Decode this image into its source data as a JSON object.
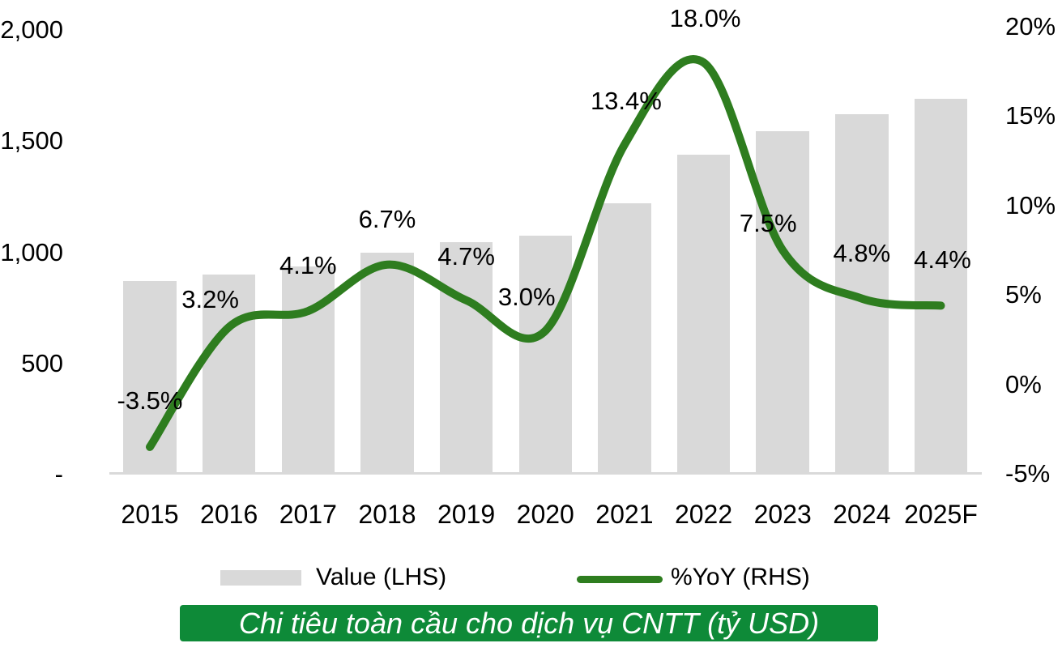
{
  "chart_data": {
    "type": "bar+line",
    "title": "Chi tiêu toàn cầu cho dịch vụ CNTT (tỷ USD)",
    "categories": [
      "2015",
      "2016",
      "2017",
      "2018",
      "2019",
      "2020",
      "2021",
      "2022",
      "2023",
      "2024",
      "2025F"
    ],
    "series": [
      {
        "name": "Value (LHS)",
        "type": "bar",
        "axis": "left",
        "color": "#d9d9d9",
        "values": [
          870,
          898,
          935,
          997,
          1044,
          1075,
          1219,
          1438,
          1546,
          1620,
          1691
        ]
      },
      {
        "name": "%YoY (RHS)",
        "type": "line",
        "axis": "right",
        "color": "#2e7d1f",
        "values": [
          -3.5,
          3.2,
          4.1,
          6.7,
          4.7,
          3.0,
          13.4,
          18.0,
          7.5,
          4.8,
          4.4
        ],
        "labels": [
          "-3.5%",
          "3.2%",
          "4.1%",
          "6.7%",
          "4.7%",
          "3.0%",
          "13.4%",
          "18.0%",
          "7.5%",
          "4.8%",
          "4.4%"
        ]
      }
    ],
    "left_axis": {
      "range": [
        0,
        2000
      ],
      "tick_values": [
        2000,
        1500,
        1000,
        500,
        0
      ],
      "tick_labels": [
        "2,000",
        "1,500",
        "1,000",
        "500",
        "-"
      ]
    },
    "right_axis": {
      "range": [
        -5,
        20
      ],
      "tick_values": [
        20,
        15,
        10,
        5,
        0,
        -5
      ],
      "tick_labels": [
        "20%",
        "15%",
        "10%",
        "5%",
        "0%",
        "-5%"
      ]
    },
    "grid": false,
    "legend_position": "bottom"
  },
  "legend": {
    "value_label": "Value (LHS)",
    "yoy_label": "%YoY (RHS)"
  },
  "title_bar": {
    "text": "Chi tiêu toàn cầu cho dịch vụ CNTT (tỷ USD)",
    "bg": "#0e8a38",
    "text_color": "#ffffff"
  },
  "colors": {
    "bar": "#d9d9d9",
    "line": "#2e7d1f",
    "axis_line": "#d9d9d9",
    "text": "#000000"
  }
}
